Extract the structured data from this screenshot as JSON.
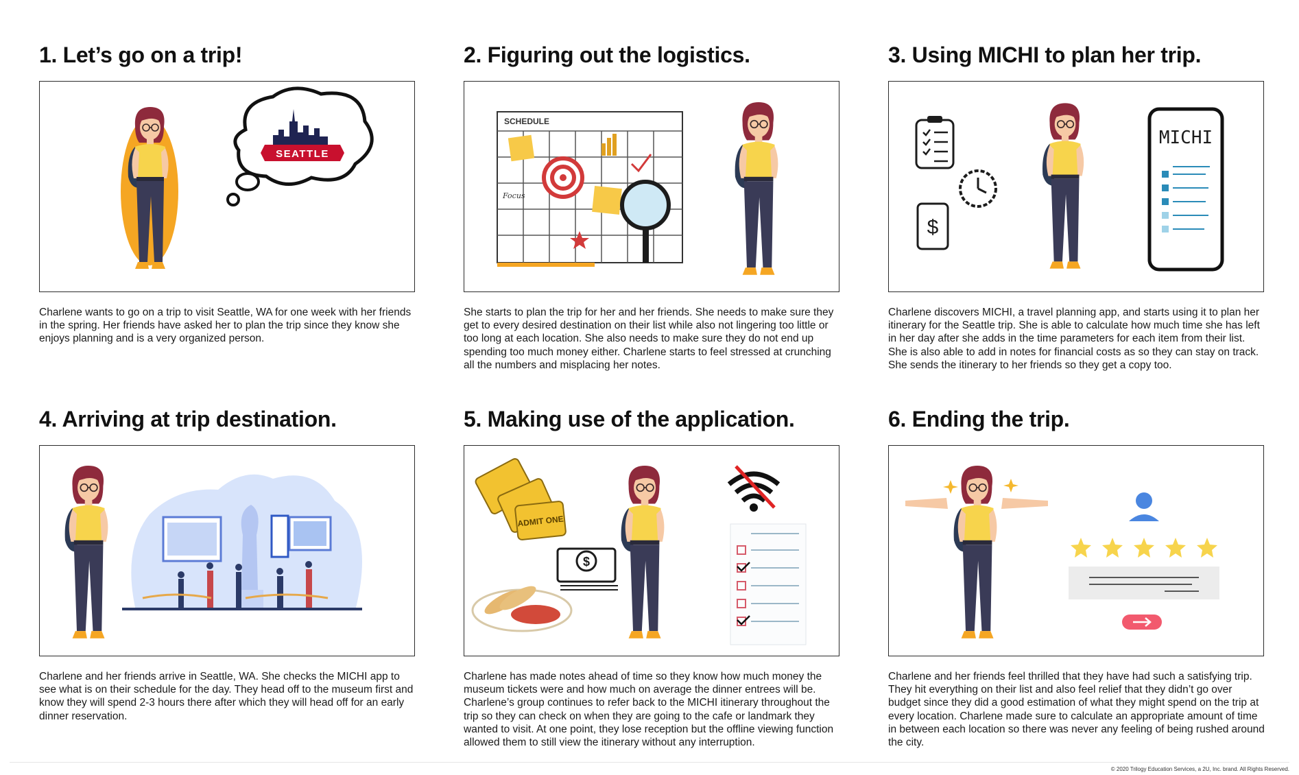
{
  "panels": [
    {
      "title": "1. Let’s go on a trip!",
      "caption": "Charlene wants to go on a trip to visit Seattle, WA for one week with her friends in the spring. Her friends have asked her to plan the trip since they know she enjoys planning and is a very organized person.",
      "illustration": {
        "icons": [
          "woman-character-icon",
          "thought-bubble-icon",
          "seattle-skyline-icon"
        ],
        "sign_text": "SEATTLE"
      }
    },
    {
      "title": "2. Figuring out the logistics.",
      "caption": "She starts to plan the trip for her and her friends. She needs to make sure they get to every desired destination on their list while also not lingering too little or too long at each location. She also needs to make sure they do not end up spending too much money either. Charlene starts to feel stressed at crunching all the numbers and misplacing her notes.",
      "illustration": {
        "icons": [
          "schedule-calendar-icon",
          "target-icon",
          "magnifier-icon",
          "sticky-note-icon",
          "star-icon",
          "woman-character-icon"
        ],
        "calendar_header": "SCHEDULE",
        "calendar_note": "Focus"
      }
    },
    {
      "title": "3. Using MICHI to plan her trip.",
      "caption": "Charlene discovers MICHI, a travel planning app, and starts using it to plan her itinerary for the Seattle trip. She is able to calculate how much time she has left in her day after she adds in the time parameters for each item from their list. She is also able to add in notes for financial costs as so they can stay on track. She sends the itinerary to her friends so they get a copy too.",
      "illustration": {
        "icons": [
          "clipboard-checklist-icon",
          "clock-icon",
          "phone-dollar-icon",
          "woman-character-icon",
          "smartphone-app-icon"
        ],
        "app_name": "MICHI"
      }
    },
    {
      "title": "4. Arriving at trip destination.",
      "caption": "Charlene and her friends arrive in Seattle, WA. She checks the MICHI app to see what is on their schedule for the day. They head off to the museum first and know they will spend 2-3 hours there after which they will head off for an early dinner reservation.",
      "illustration": {
        "icons": [
          "woman-character-icon",
          "museum-scene-icon",
          "statue-icon",
          "painting-icon"
        ]
      }
    },
    {
      "title": "5. Making use of the application.",
      "caption": "Charlene has made notes ahead of time so they know how much money the museum tickets were and how much on average the dinner entrees will be. Charlene’s group continues to refer back to the MICHI itinerary throughout the trip so they can check on when they are going to the cafe or landmark they wanted to visit. At one point, they lose reception but the offline viewing function allowed them to still view the itinerary without any interruption.",
      "illustration": {
        "icons": [
          "admit-one-tickets-icon",
          "money-stack-icon",
          "food-plate-icon",
          "woman-character-icon",
          "no-wifi-icon",
          "checklist-icon"
        ],
        "ticket_text": "ADMIT ONE",
        "money_symbol": "$"
      }
    },
    {
      "title": "6. Ending the trip.",
      "caption": "Charlene and her friends feel thrilled that they have had such a satisfying trip. They hit everything on their list and also feel relief that they didn’t go over budget since they did a good estimation of what they might spend on the trip at every location. Charlene made sure to calculate an appropriate amount of time in between each location so there was never any feeling of being rushed around the city.",
      "illustration": {
        "icons": [
          "woman-character-icon",
          "sparkle-icon",
          "user-avatar-icon",
          "star-rating-icon",
          "arrow-button-icon"
        ],
        "rating": 5,
        "rating_max": 5
      }
    }
  ],
  "footer": {
    "copyright": "© 2020 Trilogy Education Services, a 2U, Inc. brand. All Rights Reserved."
  },
  "colors": {
    "shirt_yellow": "#f7d44c",
    "hair": "#8e2a3c",
    "pants": "#3a3b57",
    "accent_orange": "#f5a623",
    "seattle_red": "#c8102e",
    "star_yellow": "#f7d44c",
    "app_blue": "#2a8bb8"
  }
}
